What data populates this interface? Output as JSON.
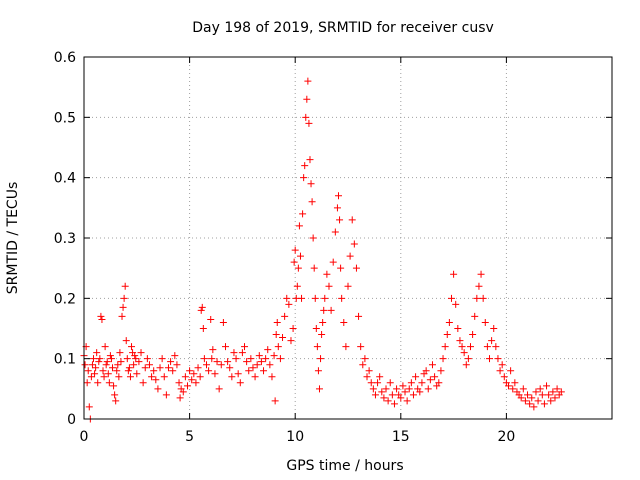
{
  "chart_data": {
    "type": "scatter",
    "title": "Day 198 of 2019, SRMTID for receiver cusv",
    "xlabel": "GPS time / hours",
    "ylabel": "SRMTID / TECUs",
    "xlim": [
      0,
      25
    ],
    "ylim": [
      0,
      0.6
    ],
    "x_ticks": [
      0,
      5,
      10,
      15,
      20
    ],
    "x_tick_labels": [
      "0",
      "5",
      "10",
      "15",
      "20"
    ],
    "y_ticks": [
      0,
      0.1,
      0.2,
      0.3,
      0.4,
      0.5,
      0.6
    ],
    "y_tick_labels": [
      "0",
      "0.1",
      "0.2",
      "0.3",
      "0.4",
      "0.5",
      "0.6"
    ],
    "grid": true,
    "marker": "+",
    "color": "#ff0000",
    "series": [
      {
        "name": "SRMTID",
        "points": [
          [
            0.0,
            0.105
          ],
          [
            0.05,
            0.09
          ],
          [
            0.1,
            0.12
          ],
          [
            0.15,
            0.06
          ],
          [
            0.2,
            0.08
          ],
          [
            0.25,
            0.02
          ],
          [
            0.3,
            0.0
          ],
          [
            0.35,
            0.07
          ],
          [
            0.4,
            0.09
          ],
          [
            0.45,
            0.1
          ],
          [
            0.5,
            0.075
          ],
          [
            0.55,
            0.085
          ],
          [
            0.6,
            0.11
          ],
          [
            0.65,
            0.06
          ],
          [
            0.7,
            0.095
          ],
          [
            0.75,
            0.1
          ],
          [
            0.8,
            0.17
          ],
          [
            0.85,
            0.165
          ],
          [
            0.9,
            0.08
          ],
          [
            0.95,
            0.07
          ],
          [
            1.0,
            0.12
          ],
          [
            1.05,
            0.09
          ],
          [
            1.1,
            0.095
          ],
          [
            1.15,
            0.075
          ],
          [
            1.2,
            0.06
          ],
          [
            1.25,
            0.105
          ],
          [
            1.3,
            0.1
          ],
          [
            1.35,
            0.085
          ],
          [
            1.4,
            0.055
          ],
          [
            1.45,
            0.04
          ],
          [
            1.5,
            0.03
          ],
          [
            1.55,
            0.08
          ],
          [
            1.6,
            0.09
          ],
          [
            1.65,
            0.07
          ],
          [
            1.7,
            0.11
          ],
          [
            1.75,
            0.095
          ],
          [
            1.8,
            0.17
          ],
          [
            1.85,
            0.185
          ],
          [
            1.9,
            0.2
          ],
          [
            1.95,
            0.22
          ],
          [
            2.0,
            0.13
          ],
          [
            2.05,
            0.1
          ],
          [
            2.1,
            0.08
          ],
          [
            2.15,
            0.085
          ],
          [
            2.2,
            0.07
          ],
          [
            2.25,
            0.12
          ],
          [
            2.3,
            0.11
          ],
          [
            2.35,
            0.09
          ],
          [
            2.4,
            0.105
          ],
          [
            2.45,
            0.1
          ],
          [
            2.5,
            0.075
          ],
          [
            2.6,
            0.095
          ],
          [
            2.7,
            0.11
          ],
          [
            2.8,
            0.06
          ],
          [
            2.9,
            0.085
          ],
          [
            3.0,
            0.1
          ],
          [
            3.1,
            0.09
          ],
          [
            3.2,
            0.07
          ],
          [
            3.3,
            0.08
          ],
          [
            3.4,
            0.065
          ],
          [
            3.5,
            0.05
          ],
          [
            3.6,
            0.085
          ],
          [
            3.7,
            0.1
          ],
          [
            3.8,
            0.07
          ],
          [
            3.9,
            0.04
          ],
          [
            4.0,
            0.085
          ],
          [
            4.1,
            0.095
          ],
          [
            4.2,
            0.08
          ],
          [
            4.3,
            0.105
          ],
          [
            4.4,
            0.09
          ],
          [
            4.5,
            0.06
          ],
          [
            4.55,
            0.035
          ],
          [
            4.6,
            0.05
          ],
          [
            4.7,
            0.045
          ],
          [
            4.8,
            0.07
          ],
          [
            4.9,
            0.055
          ],
          [
            5.0,
            0.08
          ],
          [
            5.1,
            0.065
          ],
          [
            5.2,
            0.075
          ],
          [
            5.3,
            0.06
          ],
          [
            5.4,
            0.085
          ],
          [
            5.5,
            0.07
          ],
          [
            5.55,
            0.18
          ],
          [
            5.6,
            0.185
          ],
          [
            5.65,
            0.15
          ],
          [
            5.7,
            0.1
          ],
          [
            5.8,
            0.09
          ],
          [
            5.9,
            0.08
          ],
          [
            6.0,
            0.165
          ],
          [
            6.05,
            0.1
          ],
          [
            6.1,
            0.115
          ],
          [
            6.2,
            0.075
          ],
          [
            6.3,
            0.095
          ],
          [
            6.4,
            0.05
          ],
          [
            6.5,
            0.09
          ],
          [
            6.6,
            0.16
          ],
          [
            6.7,
            0.12
          ],
          [
            6.8,
            0.095
          ],
          [
            6.9,
            0.085
          ],
          [
            7.0,
            0.07
          ],
          [
            7.1,
            0.11
          ],
          [
            7.2,
            0.1
          ],
          [
            7.3,
            0.075
          ],
          [
            7.4,
            0.06
          ],
          [
            7.5,
            0.11
          ],
          [
            7.6,
            0.12
          ],
          [
            7.7,
            0.095
          ],
          [
            7.8,
            0.08
          ],
          [
            7.9,
            0.1
          ],
          [
            8.0,
            0.085
          ],
          [
            8.1,
            0.07
          ],
          [
            8.2,
            0.09
          ],
          [
            8.3,
            0.105
          ],
          [
            8.4,
            0.095
          ],
          [
            8.5,
            0.08
          ],
          [
            8.6,
            0.1
          ],
          [
            8.7,
            0.115
          ],
          [
            8.8,
            0.09
          ],
          [
            8.9,
            0.07
          ],
          [
            9.0,
            0.105
          ],
          [
            9.05,
            0.03
          ],
          [
            9.1,
            0.14
          ],
          [
            9.15,
            0.16
          ],
          [
            9.2,
            0.12
          ],
          [
            9.3,
            0.1
          ],
          [
            9.4,
            0.135
          ],
          [
            9.5,
            0.17
          ],
          [
            9.6,
            0.2
          ],
          [
            9.7,
            0.19
          ],
          [
            9.8,
            0.13
          ],
          [
            9.9,
            0.15
          ],
          [
            9.95,
            0.26
          ],
          [
            10.0,
            0.28
          ],
          [
            10.05,
            0.2
          ],
          [
            10.1,
            0.22
          ],
          [
            10.15,
            0.25
          ],
          [
            10.2,
            0.32
          ],
          [
            10.25,
            0.27
          ],
          [
            10.3,
            0.2
          ],
          [
            10.35,
            0.34
          ],
          [
            10.4,
            0.4
          ],
          [
            10.45,
            0.42
          ],
          [
            10.5,
            0.5
          ],
          [
            10.55,
            0.53
          ],
          [
            10.6,
            0.56
          ],
          [
            10.65,
            0.49
          ],
          [
            10.7,
            0.43
          ],
          [
            10.75,
            0.39
          ],
          [
            10.8,
            0.36
          ],
          [
            10.85,
            0.3
          ],
          [
            10.9,
            0.25
          ],
          [
            10.95,
            0.2
          ],
          [
            11.0,
            0.15
          ],
          [
            11.05,
            0.12
          ],
          [
            11.1,
            0.08
          ],
          [
            11.15,
            0.05
          ],
          [
            11.2,
            0.1
          ],
          [
            11.25,
            0.14
          ],
          [
            11.3,
            0.16
          ],
          [
            11.35,
            0.18
          ],
          [
            11.4,
            0.2
          ],
          [
            11.5,
            0.24
          ],
          [
            11.6,
            0.22
          ],
          [
            11.7,
            0.18
          ],
          [
            11.8,
            0.26
          ],
          [
            11.9,
            0.31
          ],
          [
            12.0,
            0.35
          ],
          [
            12.05,
            0.37
          ],
          [
            12.1,
            0.33
          ],
          [
            12.15,
            0.25
          ],
          [
            12.2,
            0.2
          ],
          [
            12.3,
            0.16
          ],
          [
            12.4,
            0.12
          ],
          [
            12.5,
            0.22
          ],
          [
            12.6,
            0.27
          ],
          [
            12.7,
            0.33
          ],
          [
            12.8,
            0.29
          ],
          [
            12.9,
            0.25
          ],
          [
            13.0,
            0.17
          ],
          [
            13.1,
            0.12
          ],
          [
            13.2,
            0.09
          ],
          [
            13.3,
            0.1
          ],
          [
            13.4,
            0.07
          ],
          [
            13.5,
            0.08
          ],
          [
            13.6,
            0.06
          ],
          [
            13.7,
            0.05
          ],
          [
            13.8,
            0.04
          ],
          [
            13.9,
            0.06
          ],
          [
            14.0,
            0.07
          ],
          [
            14.1,
            0.045
          ],
          [
            14.2,
            0.035
          ],
          [
            14.3,
            0.05
          ],
          [
            14.4,
            0.03
          ],
          [
            14.5,
            0.06
          ],
          [
            14.6,
            0.04
          ],
          [
            14.7,
            0.025
          ],
          [
            14.8,
            0.05
          ],
          [
            14.9,
            0.04
          ],
          [
            15.0,
            0.035
          ],
          [
            15.1,
            0.055
          ],
          [
            15.2,
            0.045
          ],
          [
            15.3,
            0.03
          ],
          [
            15.4,
            0.05
          ],
          [
            15.5,
            0.06
          ],
          [
            15.6,
            0.04
          ],
          [
            15.7,
            0.07
          ],
          [
            15.8,
            0.05
          ],
          [
            15.9,
            0.045
          ],
          [
            16.0,
            0.06
          ],
          [
            16.1,
            0.075
          ],
          [
            16.2,
            0.08
          ],
          [
            16.3,
            0.05
          ],
          [
            16.4,
            0.065
          ],
          [
            16.5,
            0.09
          ],
          [
            16.6,
            0.07
          ],
          [
            16.7,
            0.055
          ],
          [
            16.8,
            0.06
          ],
          [
            16.9,
            0.08
          ],
          [
            17.0,
            0.1
          ],
          [
            17.1,
            0.12
          ],
          [
            17.2,
            0.14
          ],
          [
            17.3,
            0.16
          ],
          [
            17.4,
            0.2
          ],
          [
            17.5,
            0.24
          ],
          [
            17.6,
            0.19
          ],
          [
            17.7,
            0.15
          ],
          [
            17.8,
            0.13
          ],
          [
            17.9,
            0.12
          ],
          [
            18.0,
            0.11
          ],
          [
            18.1,
            0.09
          ],
          [
            18.2,
            0.1
          ],
          [
            18.3,
            0.12
          ],
          [
            18.4,
            0.14
          ],
          [
            18.5,
            0.17
          ],
          [
            18.6,
            0.2
          ],
          [
            18.7,
            0.22
          ],
          [
            18.8,
            0.24
          ],
          [
            18.9,
            0.2
          ],
          [
            19.0,
            0.16
          ],
          [
            19.1,
            0.12
          ],
          [
            19.2,
            0.1
          ],
          [
            19.3,
            0.13
          ],
          [
            19.4,
            0.15
          ],
          [
            19.5,
            0.12
          ],
          [
            19.6,
            0.1
          ],
          [
            19.7,
            0.08
          ],
          [
            19.8,
            0.09
          ],
          [
            19.9,
            0.07
          ],
          [
            20.0,
            0.06
          ],
          [
            20.1,
            0.055
          ],
          [
            20.2,
            0.08
          ],
          [
            20.3,
            0.05
          ],
          [
            20.4,
            0.06
          ],
          [
            20.5,
            0.045
          ],
          [
            20.6,
            0.04
          ],
          [
            20.7,
            0.035
          ],
          [
            20.8,
            0.05
          ],
          [
            20.9,
            0.03
          ],
          [
            21.0,
            0.04
          ],
          [
            21.1,
            0.025
          ],
          [
            21.2,
            0.035
          ],
          [
            21.3,
            0.02
          ],
          [
            21.4,
            0.045
          ],
          [
            21.5,
            0.03
          ],
          [
            21.6,
            0.05
          ],
          [
            21.7,
            0.04
          ],
          [
            21.8,
            0.025
          ],
          [
            21.9,
            0.055
          ],
          [
            22.0,
            0.04
          ],
          [
            22.1,
            0.03
          ],
          [
            22.2,
            0.045
          ],
          [
            22.3,
            0.035
          ],
          [
            22.4,
            0.05
          ],
          [
            22.5,
            0.04
          ],
          [
            22.6,
            0.045
          ]
        ]
      }
    ]
  }
}
